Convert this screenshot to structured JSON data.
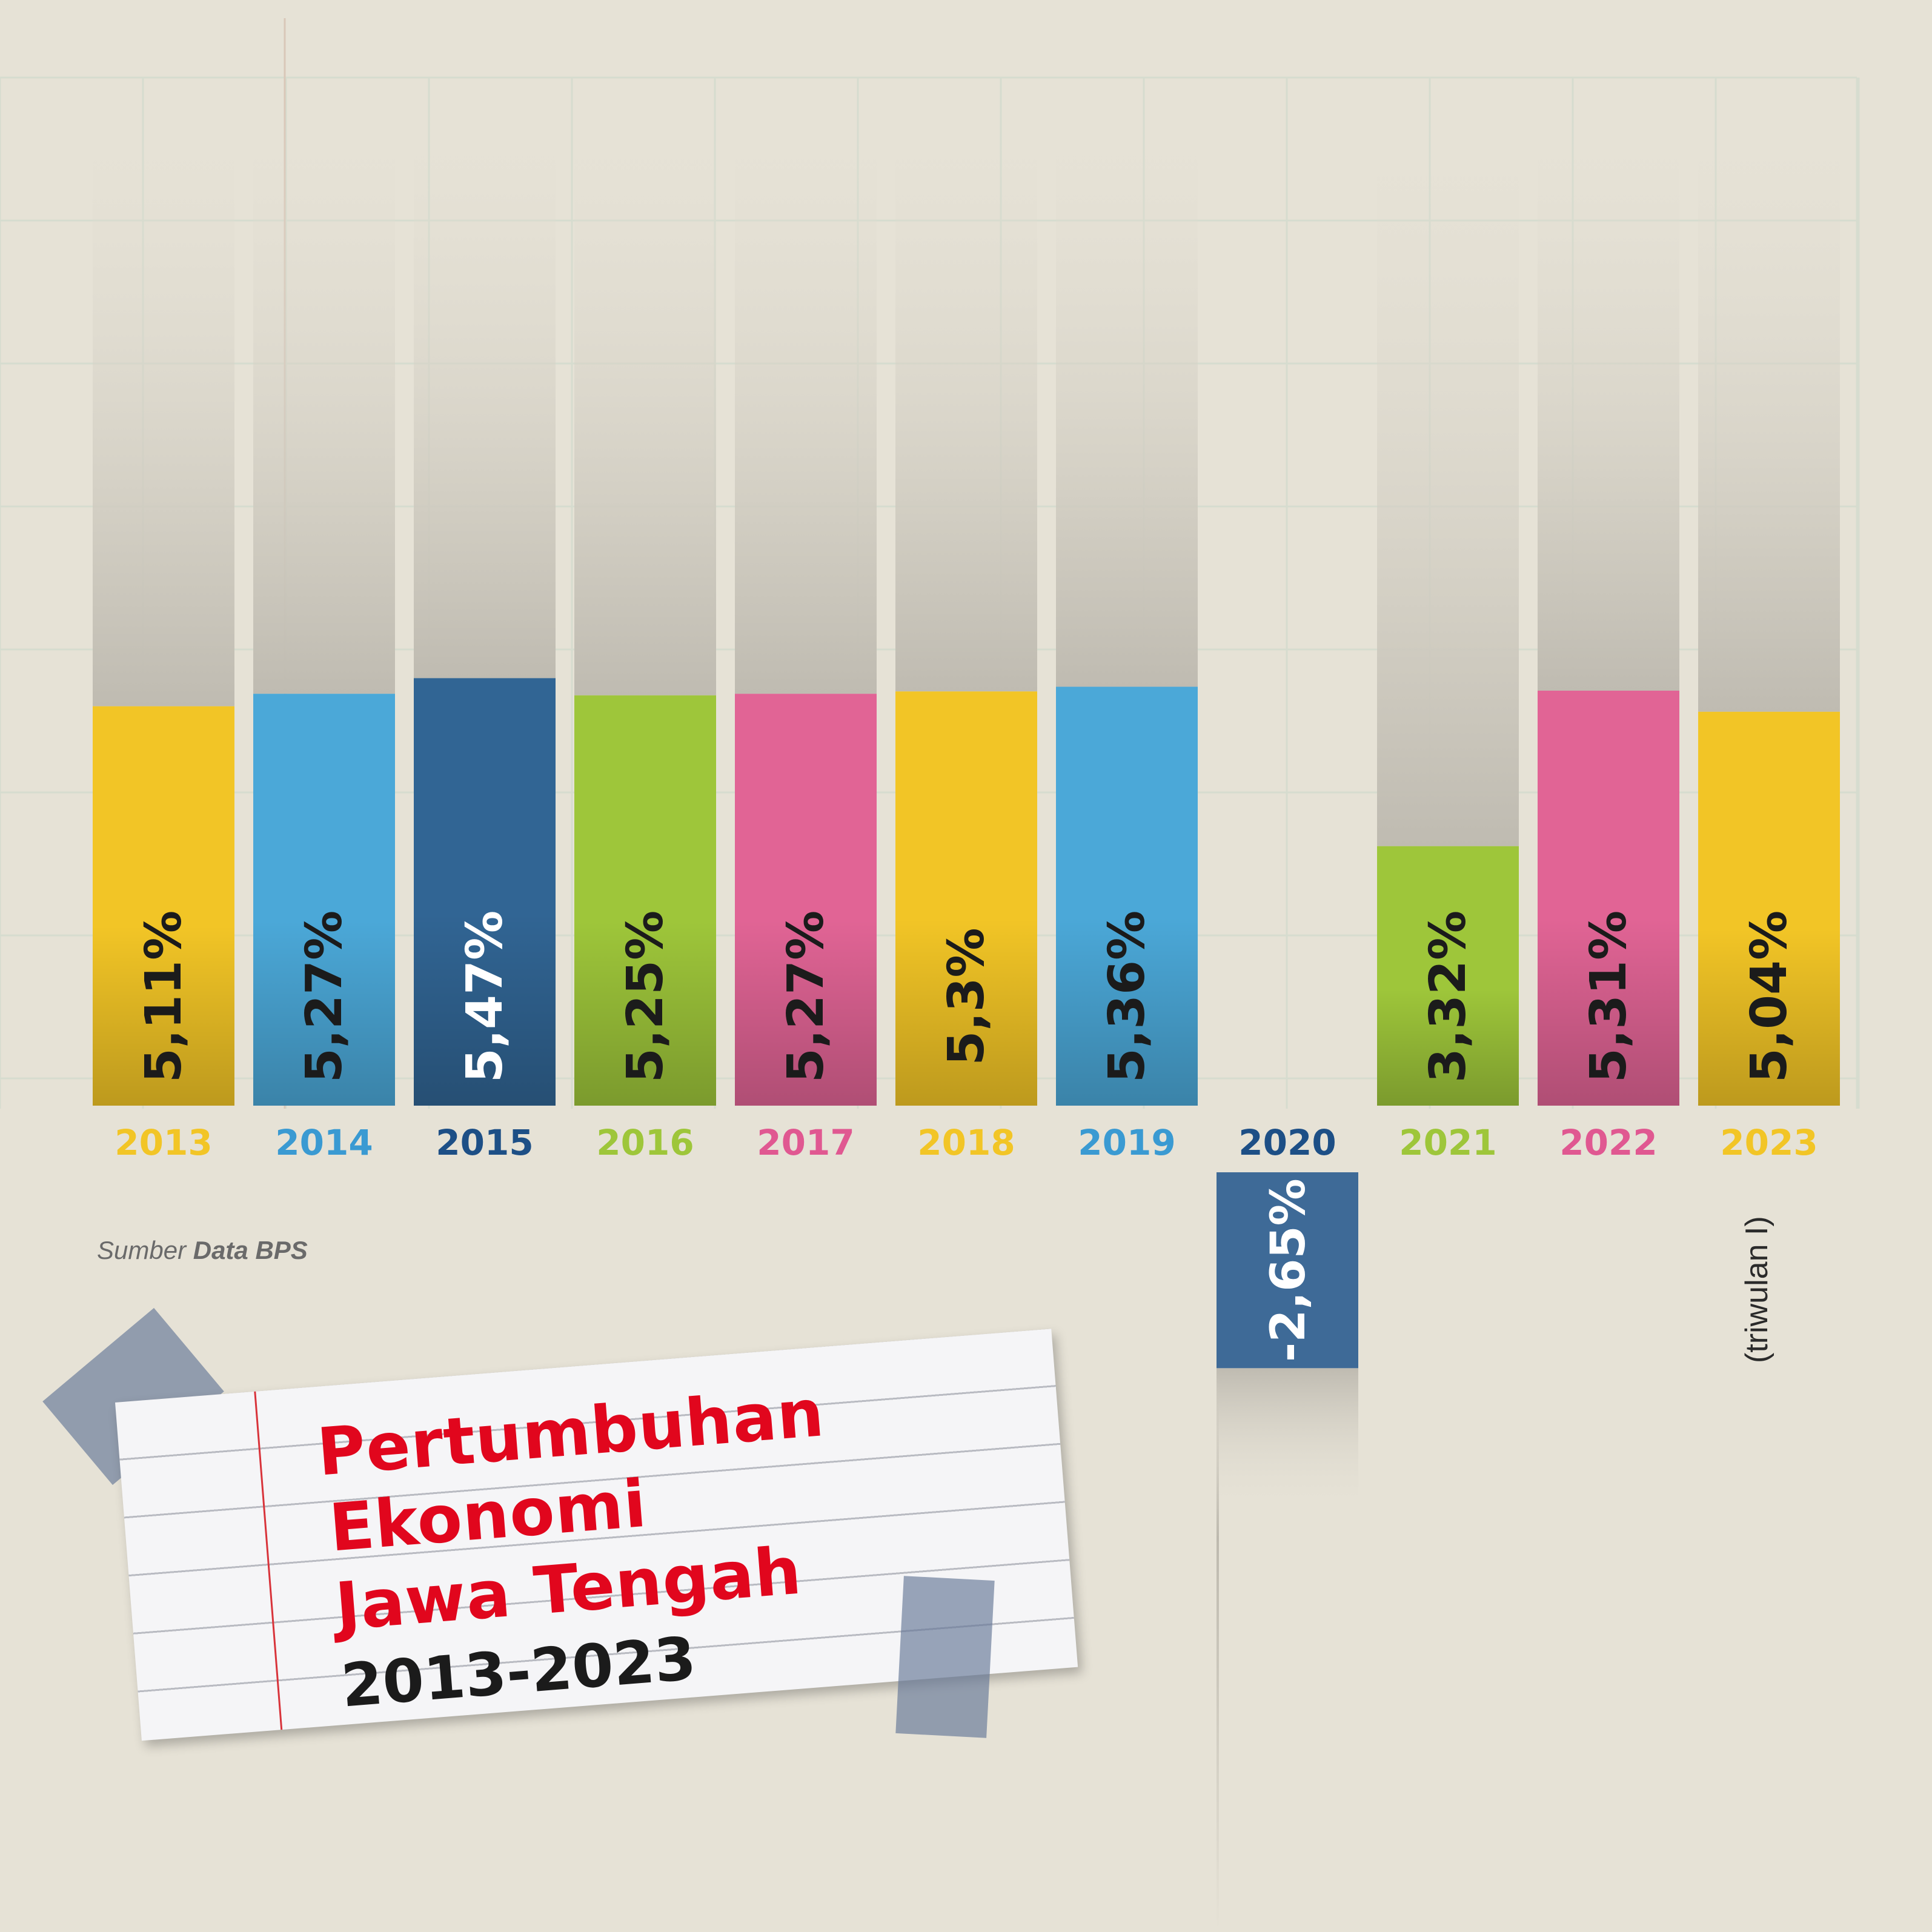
{
  "chart_data": {
    "type": "bar",
    "title": "Pertumbuhan Ekonomi Jawa Tengah",
    "subtitle": "2013-2023",
    "categories": [
      "2013",
      "2014",
      "2015",
      "2016",
      "2017",
      "2018",
      "2019",
      "2020",
      "2021",
      "2022",
      "2023"
    ],
    "values": [
      5.11,
      5.27,
      5.47,
      5.25,
      5.27,
      5.3,
      5.36,
      -2.65,
      3.32,
      5.31,
      5.04
    ],
    "value_labels": [
      "5,11%",
      "5,27%",
      "5,47%",
      "5,25%",
      "5,27%",
      "5,3%",
      "5,36%",
      "-2,65%",
      "3,32%",
      "5,31%",
      "5,04%"
    ],
    "bar_colors": [
      "#f2c526",
      "#4ba8d8",
      "#316594",
      "#9ec63a",
      "#e16495",
      "#f2c526",
      "#4ba8d8",
      "#3e6a97",
      "#9ec63a",
      "#e16495",
      "#f2c526"
    ],
    "year_label_colors": [
      "#f2c526",
      "#3a9ad2",
      "#1d4f86",
      "#9ec63a",
      "#e05891",
      "#f2c526",
      "#3a9ad2",
      "#1d4f86",
      "#9ec63a",
      "#e05891",
      "#f2c526"
    ],
    "value_text_colors": [
      "#1b1b1b",
      "#1b1b1b",
      "#ffffff",
      "#1b1b1b",
      "#1b1b1b",
      "#1b1b1b",
      "#1b1b1b",
      "#ffffff",
      "#1b1b1b",
      "#1b1b1b",
      "#1b1b1b"
    ],
    "grid": true,
    "xlabel": "",
    "ylabel": ""
  },
  "title": {
    "line1": "Pertumbuhan",
    "line2": "Ekonomi",
    "line3": "Jawa Tengah",
    "years": "2013-2023"
  },
  "source": {
    "prefix": "Sumber",
    "name": "Data BPS"
  },
  "note_2023": "(triwulan I)"
}
